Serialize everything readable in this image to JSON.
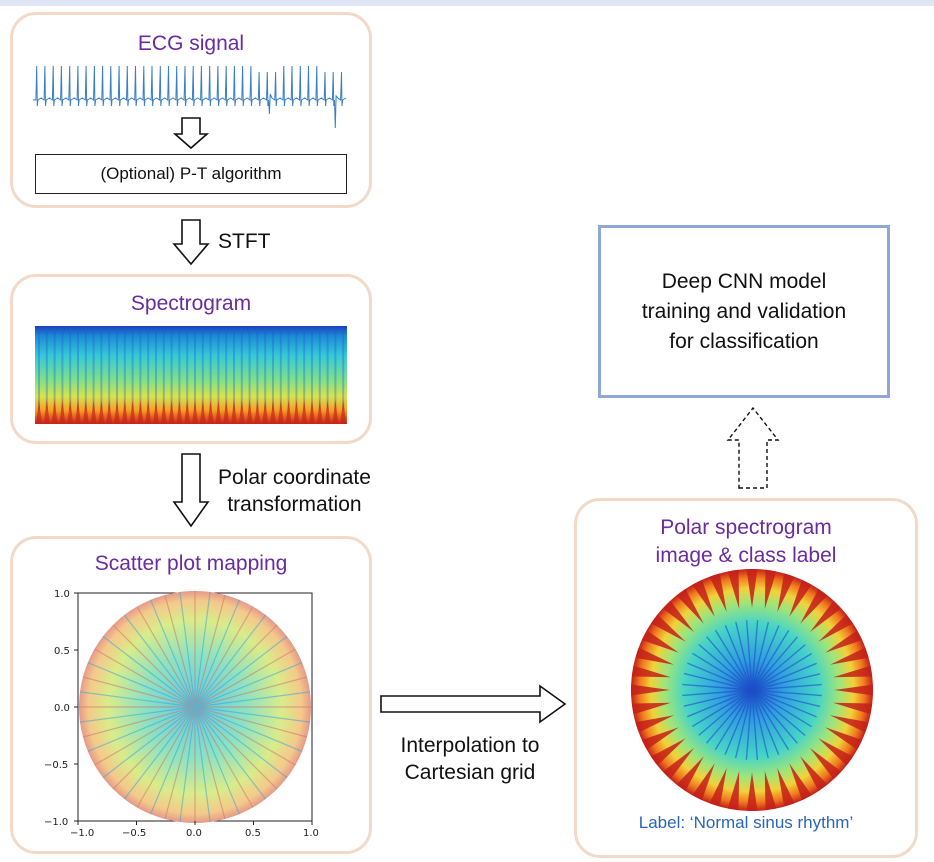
{
  "ecg_panel": {
    "title": "ECG signal",
    "pt_label": "(Optional) P-T algorithm"
  },
  "stft_label": "STFT",
  "spectrogram_panel": {
    "title": "Spectrogram"
  },
  "polar_label": {
    "line1": "Polar coordinate",
    "line2": "transformation"
  },
  "scatter_panel": {
    "title": "Scatter plot mapping",
    "x_ticks": [
      "−1.0",
      "−0.5",
      "0.0",
      "0.5",
      "1.0"
    ],
    "y_ticks": [
      "1.0",
      "0.5",
      "0.0",
      "−0.5",
      "−1.0"
    ]
  },
  "interp_label": {
    "line1": "Interpolation to",
    "line2": "Cartesian grid"
  },
  "polar_image_panel": {
    "title_line1": "Polar spectrogram",
    "title_line2": "image & class label",
    "class_label": "Label: ‘Normal sinus rhythm’"
  },
  "cnn_box": {
    "line1": "Deep CNN model",
    "line2": "training and validation",
    "line3": "for classification"
  },
  "colors": {
    "panel_border": "#f2d9c8",
    "title_purple": "#6a2b9e",
    "cnn_border": "#8fa6d8",
    "label_blue": "#2a66b8",
    "ecg_trace": "#3b7fc4"
  }
}
